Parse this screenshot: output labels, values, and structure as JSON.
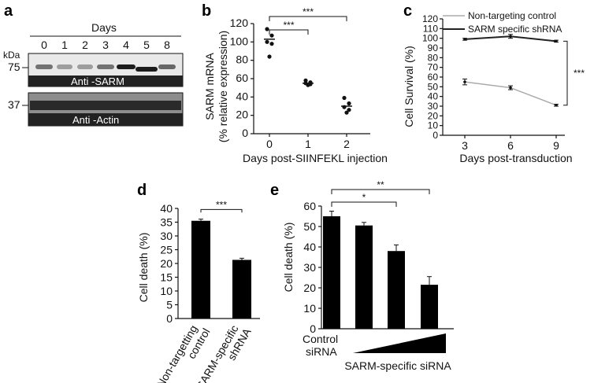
{
  "panel_a": {
    "label": "a",
    "days_title": "Days",
    "kda": "kDa",
    "lanes": [
      "0",
      "1",
      "2",
      "3",
      "4",
      "5",
      "8"
    ],
    "marker_75": "75",
    "marker_37": "37",
    "sarm_label": "Anti -SARM",
    "actin_label": "Anti -Actin"
  },
  "chart_data": [
    {
      "panel": "b",
      "type": "scatter",
      "ylabel": "SARM mRNA (% relative expression)",
      "ylabel_line1": "SARM mRNA",
      "ylabel_line2": "(% relative expression)",
      "xlabel": "Days post-SIINFEKL injection",
      "categories": [
        "0",
        "1",
        "2"
      ],
      "points": [
        [
          114,
          107,
          100,
          98,
          84
        ],
        [
          58,
          56,
          55,
          54,
          53
        ],
        [
          39,
          33,
          29,
          26,
          23
        ]
      ],
      "means": [
        103,
        55,
        30
      ],
      "ylim": [
        0,
        120
      ],
      "yticks": [
        "0",
        "20",
        "40",
        "60",
        "80",
        "100",
        "120"
      ],
      "significance": [
        {
          "from": "0",
          "to": "1",
          "label": "***"
        },
        {
          "from": "0",
          "to": "2",
          "label": "***"
        }
      ]
    },
    {
      "panel": "c",
      "type": "line",
      "ylabel": "Cell Survival (%)",
      "xlabel": "Days post-transduction",
      "x": [
        "3",
        "6",
        "9"
      ],
      "ylim": [
        0,
        120
      ],
      "yticks": [
        "0",
        "10",
        "20",
        "30",
        "40",
        "50",
        "60",
        "70",
        "80",
        "90",
        "100",
        "110",
        "120"
      ],
      "series": [
        {
          "name": "Non-targeting control",
          "values": [
            55,
            49,
            31
          ],
          "errors": [
            3,
            2,
            1
          ],
          "color": "#aaaaaa"
        },
        {
          "name": "SARM specific shRNA",
          "values": [
            99,
            102,
            97
          ],
          "errors": [
            1,
            2,
            1
          ],
          "color": "#222222"
        }
      ],
      "significance": "***",
      "legend": "top"
    },
    {
      "panel": "d",
      "type": "bar",
      "ylabel": "Cell death (%)",
      "categories": [
        "Non-targetting control",
        "SARM-specific shRNA"
      ],
      "cat_lines": [
        [
          "Non-targetting",
          "control"
        ],
        [
          "SARM-specific",
          "shRNA"
        ]
      ],
      "values": [
        35.5,
        21.3
      ],
      "errors": [
        0.6,
        0.6
      ],
      "ylim": [
        0,
        40
      ],
      "yticks": [
        "0",
        "5",
        "10",
        "15",
        "20",
        "25",
        "30",
        "35",
        "40"
      ],
      "significance": "***"
    },
    {
      "panel": "e",
      "type": "bar",
      "ylabel": "Cell death (%)",
      "values": [
        55,
        50.5,
        38,
        21.5
      ],
      "errors": [
        2.5,
        1.5,
        3,
        4
      ],
      "ylim": [
        0,
        60
      ],
      "yticks": [
        "0",
        "10",
        "20",
        "30",
        "40",
        "50",
        "60"
      ],
      "control_line1": "Control",
      "control_line2": "siRNA",
      "xlabel": "SARM-specific siRNA",
      "significance": [
        {
          "to": 3,
          "label": "*"
        },
        {
          "to": 4,
          "label": "**"
        }
      ]
    }
  ]
}
